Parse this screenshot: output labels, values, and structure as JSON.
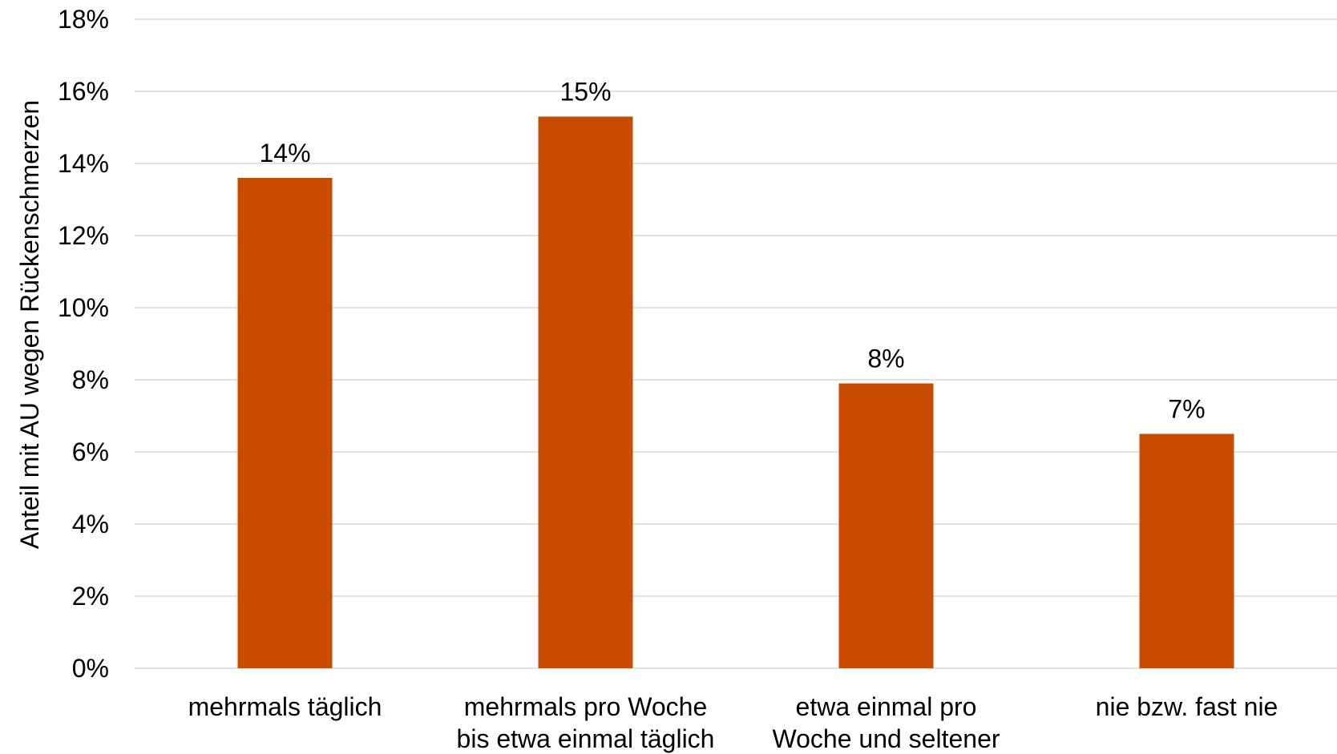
{
  "chart_data": {
    "type": "bar",
    "ylabel": "Anteil mit AU wegen Rückenschmerzen",
    "xlabel": "",
    "ylim": [
      0,
      18
    ],
    "yticks": [
      0,
      2,
      4,
      6,
      8,
      10,
      12,
      14,
      16,
      18
    ],
    "ytick_labels": [
      "0%",
      "2%",
      "4%",
      "6%",
      "8%",
      "10%",
      "12%",
      "14%",
      "16%",
      "18%"
    ],
    "grid": true,
    "categories": [
      [
        "mehrmals täglich"
      ],
      [
        "mehrmals pro Woche",
        "bis etwa einmal täglich"
      ],
      [
        "etwa einmal pro",
        "Woche und seltener"
      ],
      [
        "nie bzw. fast nie"
      ]
    ],
    "values": [
      13.6,
      15.3,
      7.9,
      6.5
    ],
    "data_labels": [
      "14%",
      "15%",
      "8%",
      "7%"
    ],
    "bar_color": "#c84b00"
  }
}
